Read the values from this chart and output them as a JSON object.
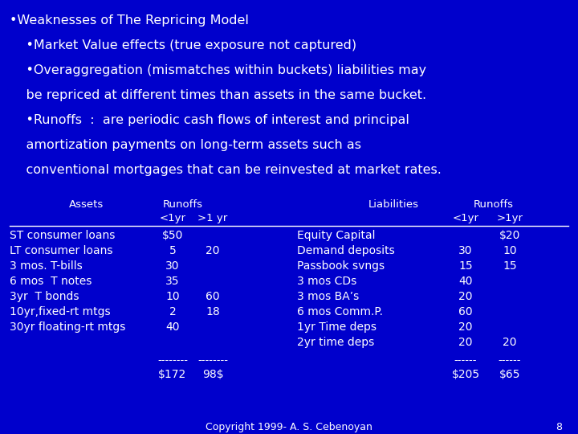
{
  "bg_color": "#0000cc",
  "text_color": "#ffffff",
  "title_lines": [
    "•Weaknesses of The Repricing Model",
    "    •Market Value effects (true exposure not captured)",
    "    •Overaggregation (mismatches within buckets) liabilities may",
    "    be repriced at different times than assets in the same bucket.",
    "    •Runoffs  :  are periodic cash flows of interest and principal",
    "    amortization payments on long-term assets such as",
    "    conventional mortgages that can be reinvested at market rates."
  ],
  "table_rows": [
    [
      "ST consumer loans",
      "$50",
      "",
      "Equity Capital",
      "",
      "$20"
    ],
    [
      "LT consumer loans",
      "5",
      "20",
      "Demand deposits",
      "30",
      "10"
    ],
    [
      "3 mos. T-bills",
      "30",
      "",
      "Passbook svngs",
      "15",
      "15"
    ],
    [
      "6 mos  T notes",
      "35",
      "",
      "3 mos CDs",
      "40",
      ""
    ],
    [
      "3yr  T bonds",
      "10",
      "60",
      "3 mos BA’s",
      "20",
      ""
    ],
    [
      "10yr,fixed-rt mtgs",
      "2",
      "18",
      "6 mos Comm.P.",
      "60",
      ""
    ],
    [
      "30yr floating-rt mtgs",
      "40",
      "",
      "1yr Time deps",
      "20",
      ""
    ],
    [
      "",
      "",
      "",
      "2yr time deps",
      "20",
      "20"
    ]
  ],
  "copyright": "Copyright 1999- A. S. Cebenoyan",
  "page_num": "8",
  "title_fontsize": 11.5,
  "table_fontsize": 10.0,
  "header_fontsize": 9.5,
  "footer_fontsize": 9.0
}
